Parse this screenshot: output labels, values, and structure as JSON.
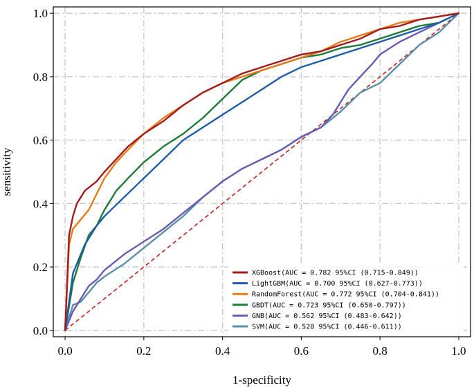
{
  "chart_data": {
    "type": "line",
    "title": "",
    "xlabel": "1-specificity",
    "ylabel": "sensitivity",
    "xlim": [
      -0.03,
      1.03
    ],
    "ylim": [
      -0.02,
      1.02
    ],
    "xticks": [
      0.0,
      0.2,
      0.4,
      0.6,
      0.8,
      1.0
    ],
    "xtick_labels": [
      "0.0",
      "0.2",
      "0.4",
      "0.6",
      "0.8",
      "1.0"
    ],
    "yticks": [
      0.0,
      0.2,
      0.4,
      0.6,
      0.8,
      1.0
    ],
    "ytick_labels": [
      "0.0",
      "0.2",
      "0.4",
      "0.6",
      "0.8",
      "1.0"
    ],
    "grid": true,
    "legend_position": "lower-right",
    "reference_line": {
      "name": "chance",
      "color": "#c0201a",
      "x": [
        0,
        1
      ],
      "y": [
        0,
        1
      ]
    },
    "series": [
      {
        "name": "XGBoost",
        "label": "XGBoost(AUC = 0.782 95%CI (0.715-0.849))",
        "color": "#a31a1a",
        "x": [
          0,
          0.01,
          0.02,
          0.03,
          0.05,
          0.08,
          0.1,
          0.13,
          0.16,
          0.2,
          0.25,
          0.3,
          0.35,
          0.4,
          0.45,
          0.5,
          0.55,
          0.6,
          0.65,
          0.7,
          0.75,
          0.8,
          0.85,
          0.9,
          0.95,
          1.0
        ],
        "y": [
          0,
          0.3,
          0.36,
          0.4,
          0.44,
          0.47,
          0.5,
          0.54,
          0.58,
          0.62,
          0.66,
          0.71,
          0.75,
          0.78,
          0.81,
          0.83,
          0.85,
          0.87,
          0.88,
          0.9,
          0.92,
          0.95,
          0.96,
          0.98,
          0.99,
          1.0
        ]
      },
      {
        "name": "LightGBM",
        "label": "LightGBM(AUC = 0.700 95%CI (0.627-0.773))",
        "color": "#1f5ca8",
        "x": [
          0,
          0.02,
          0.05,
          0.08,
          0.1,
          0.15,
          0.2,
          0.25,
          0.3,
          0.35,
          0.4,
          0.45,
          0.5,
          0.55,
          0.6,
          0.65,
          0.7,
          0.75,
          0.8,
          0.85,
          0.9,
          0.95,
          1.0
        ],
        "y": [
          0,
          0.18,
          0.27,
          0.33,
          0.36,
          0.42,
          0.48,
          0.54,
          0.6,
          0.64,
          0.68,
          0.72,
          0.76,
          0.8,
          0.83,
          0.85,
          0.87,
          0.89,
          0.91,
          0.93,
          0.95,
          0.97,
          1.0
        ]
      },
      {
        "name": "RandomForest",
        "label": "RandomForest(AUC = 0.772 95%CI (0.704-0.841))",
        "color": "#e97a18",
        "x": [
          0,
          0.01,
          0.02,
          0.04,
          0.06,
          0.08,
          0.1,
          0.13,
          0.16,
          0.2,
          0.25,
          0.3,
          0.35,
          0.4,
          0.45,
          0.5,
          0.55,
          0.6,
          0.65,
          0.7,
          0.75,
          0.8,
          0.85,
          0.9,
          0.95,
          1.0
        ],
        "y": [
          0,
          0.27,
          0.32,
          0.35,
          0.38,
          0.43,
          0.48,
          0.53,
          0.57,
          0.62,
          0.67,
          0.71,
          0.75,
          0.78,
          0.8,
          0.82,
          0.84,
          0.86,
          0.88,
          0.91,
          0.93,
          0.95,
          0.97,
          0.98,
          0.99,
          1.0
        ]
      },
      {
        "name": "GBDT",
        "label": "GBDT(AUC = 0.723 95%CI (0.650-0.797))",
        "color": "#1e7b36",
        "x": [
          0,
          0.02,
          0.04,
          0.06,
          0.08,
          0.1,
          0.13,
          0.16,
          0.2,
          0.25,
          0.3,
          0.35,
          0.4,
          0.45,
          0.5,
          0.55,
          0.6,
          0.65,
          0.7,
          0.75,
          0.8,
          0.85,
          0.9,
          0.95,
          1.0
        ],
        "y": [
          0,
          0.15,
          0.23,
          0.3,
          0.33,
          0.38,
          0.44,
          0.48,
          0.53,
          0.58,
          0.62,
          0.67,
          0.73,
          0.79,
          0.82,
          0.84,
          0.86,
          0.87,
          0.89,
          0.9,
          0.92,
          0.94,
          0.96,
          0.97,
          1.0
        ]
      },
      {
        "name": "GNB",
        "label": "GNB(AUC = 0.562 95%CI (0.483-0.642))",
        "color": "#6a5bb0",
        "x": [
          0,
          0.02,
          0.04,
          0.06,
          0.08,
          0.1,
          0.15,
          0.2,
          0.25,
          0.3,
          0.35,
          0.4,
          0.45,
          0.5,
          0.55,
          0.6,
          0.65,
          0.68,
          0.7,
          0.72,
          0.75,
          0.78,
          0.8,
          0.85,
          0.9,
          0.95,
          1.0
        ],
        "y": [
          0,
          0.06,
          0.1,
          0.14,
          0.16,
          0.19,
          0.24,
          0.28,
          0.32,
          0.37,
          0.42,
          0.47,
          0.51,
          0.54,
          0.57,
          0.61,
          0.64,
          0.68,
          0.72,
          0.76,
          0.8,
          0.84,
          0.87,
          0.91,
          0.94,
          0.97,
          1.0
        ]
      },
      {
        "name": "SVM",
        "label": "SVM(AUC = 0.528 95%CI (0.446-0.611))",
        "color": "#5a8fa8",
        "x": [
          0,
          0.02,
          0.04,
          0.06,
          0.08,
          0.1,
          0.15,
          0.2,
          0.25,
          0.3,
          0.35,
          0.4,
          0.45,
          0.5,
          0.55,
          0.6,
          0.65,
          0.7,
          0.75,
          0.8,
          0.85,
          0.9,
          0.95,
          1.0
        ],
        "y": [
          0,
          0.08,
          0.09,
          0.12,
          0.15,
          0.17,
          0.21,
          0.26,
          0.31,
          0.36,
          0.42,
          0.47,
          0.51,
          0.54,
          0.57,
          0.61,
          0.64,
          0.69,
          0.75,
          0.78,
          0.84,
          0.9,
          0.94,
          1.0
        ]
      }
    ]
  }
}
